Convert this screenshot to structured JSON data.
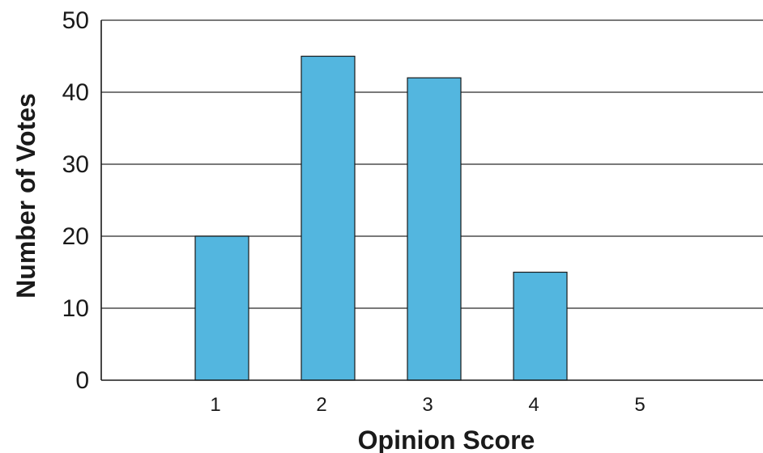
{
  "chart_data": {
    "type": "bar",
    "categories": [
      "1",
      "2",
      "3",
      "4",
      "5"
    ],
    "values": [
      20,
      45,
      42,
      15,
      0
    ],
    "title": "",
    "xlabel": "Opinion Score",
    "ylabel": "Number of Votes",
    "ylim": [
      0,
      50
    ],
    "yticks": [
      0,
      10,
      20,
      30,
      40,
      50
    ],
    "grid": "horizontal",
    "colors": {
      "bar": "#53b6df",
      "bar_stroke": "#1a1a1a",
      "grid": "#4d4d4d",
      "axis": "#1a1a1a"
    }
  }
}
